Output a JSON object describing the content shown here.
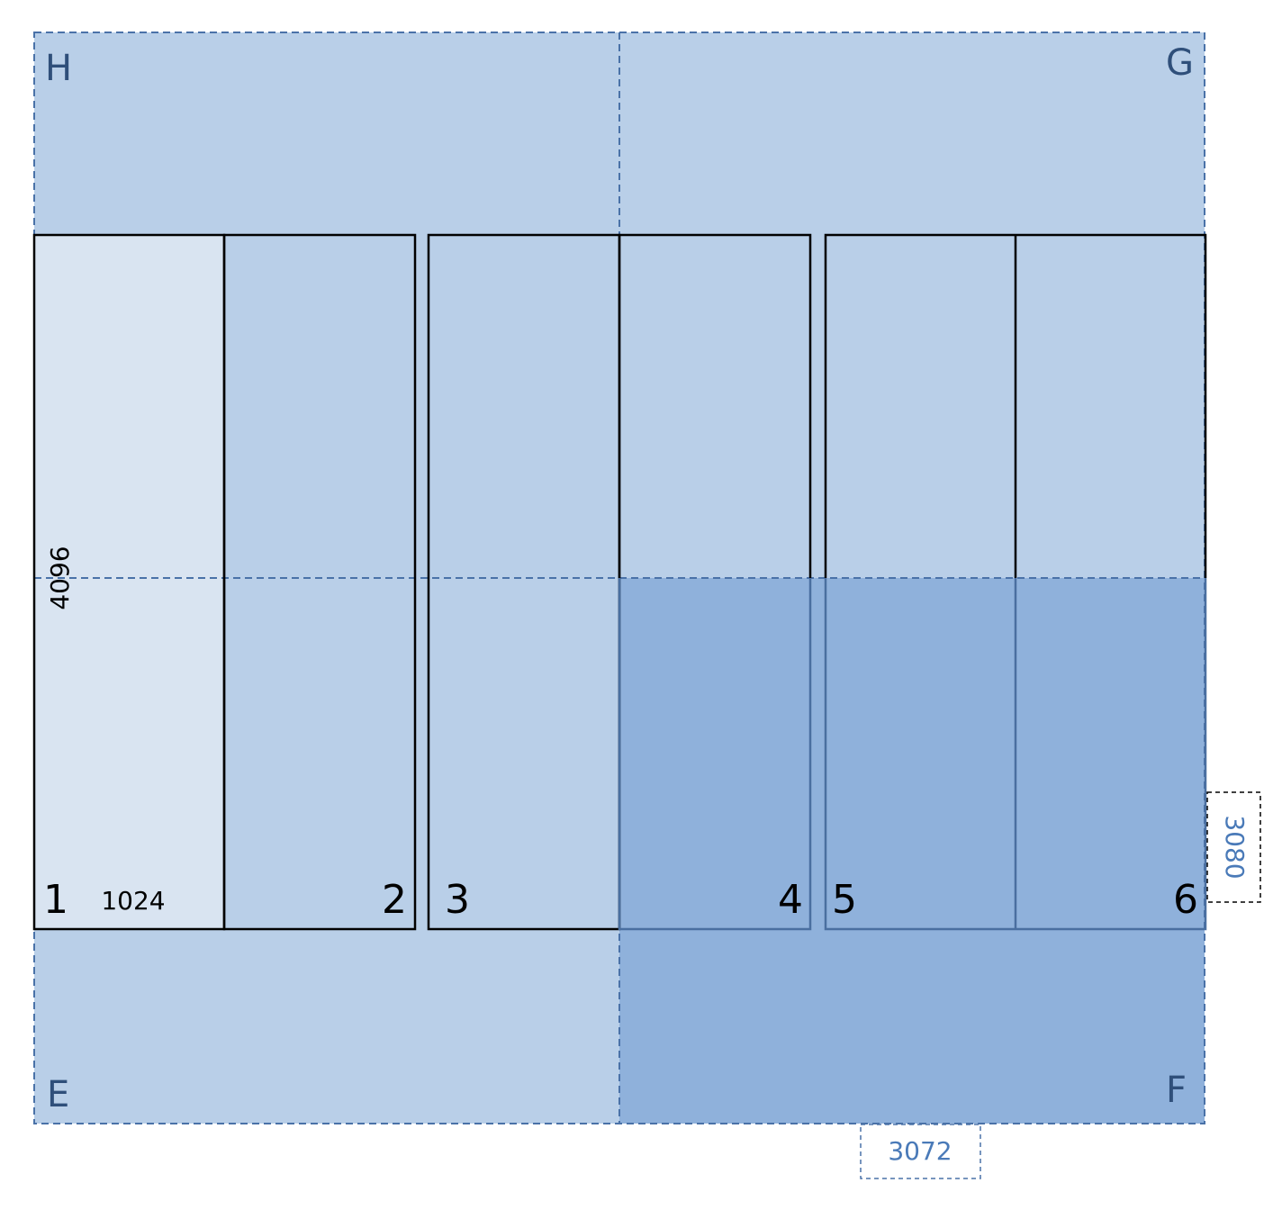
{
  "corners": {
    "top_left": "H",
    "top_right": "G",
    "bottom_left": "E",
    "bottom_right": "F"
  },
  "panels": [
    1,
    2,
    3,
    4,
    5,
    6
  ],
  "dimensions": {
    "height": 4096,
    "width": 1024,
    "right_offset": 3080,
    "bottom_offset": 3072
  }
}
